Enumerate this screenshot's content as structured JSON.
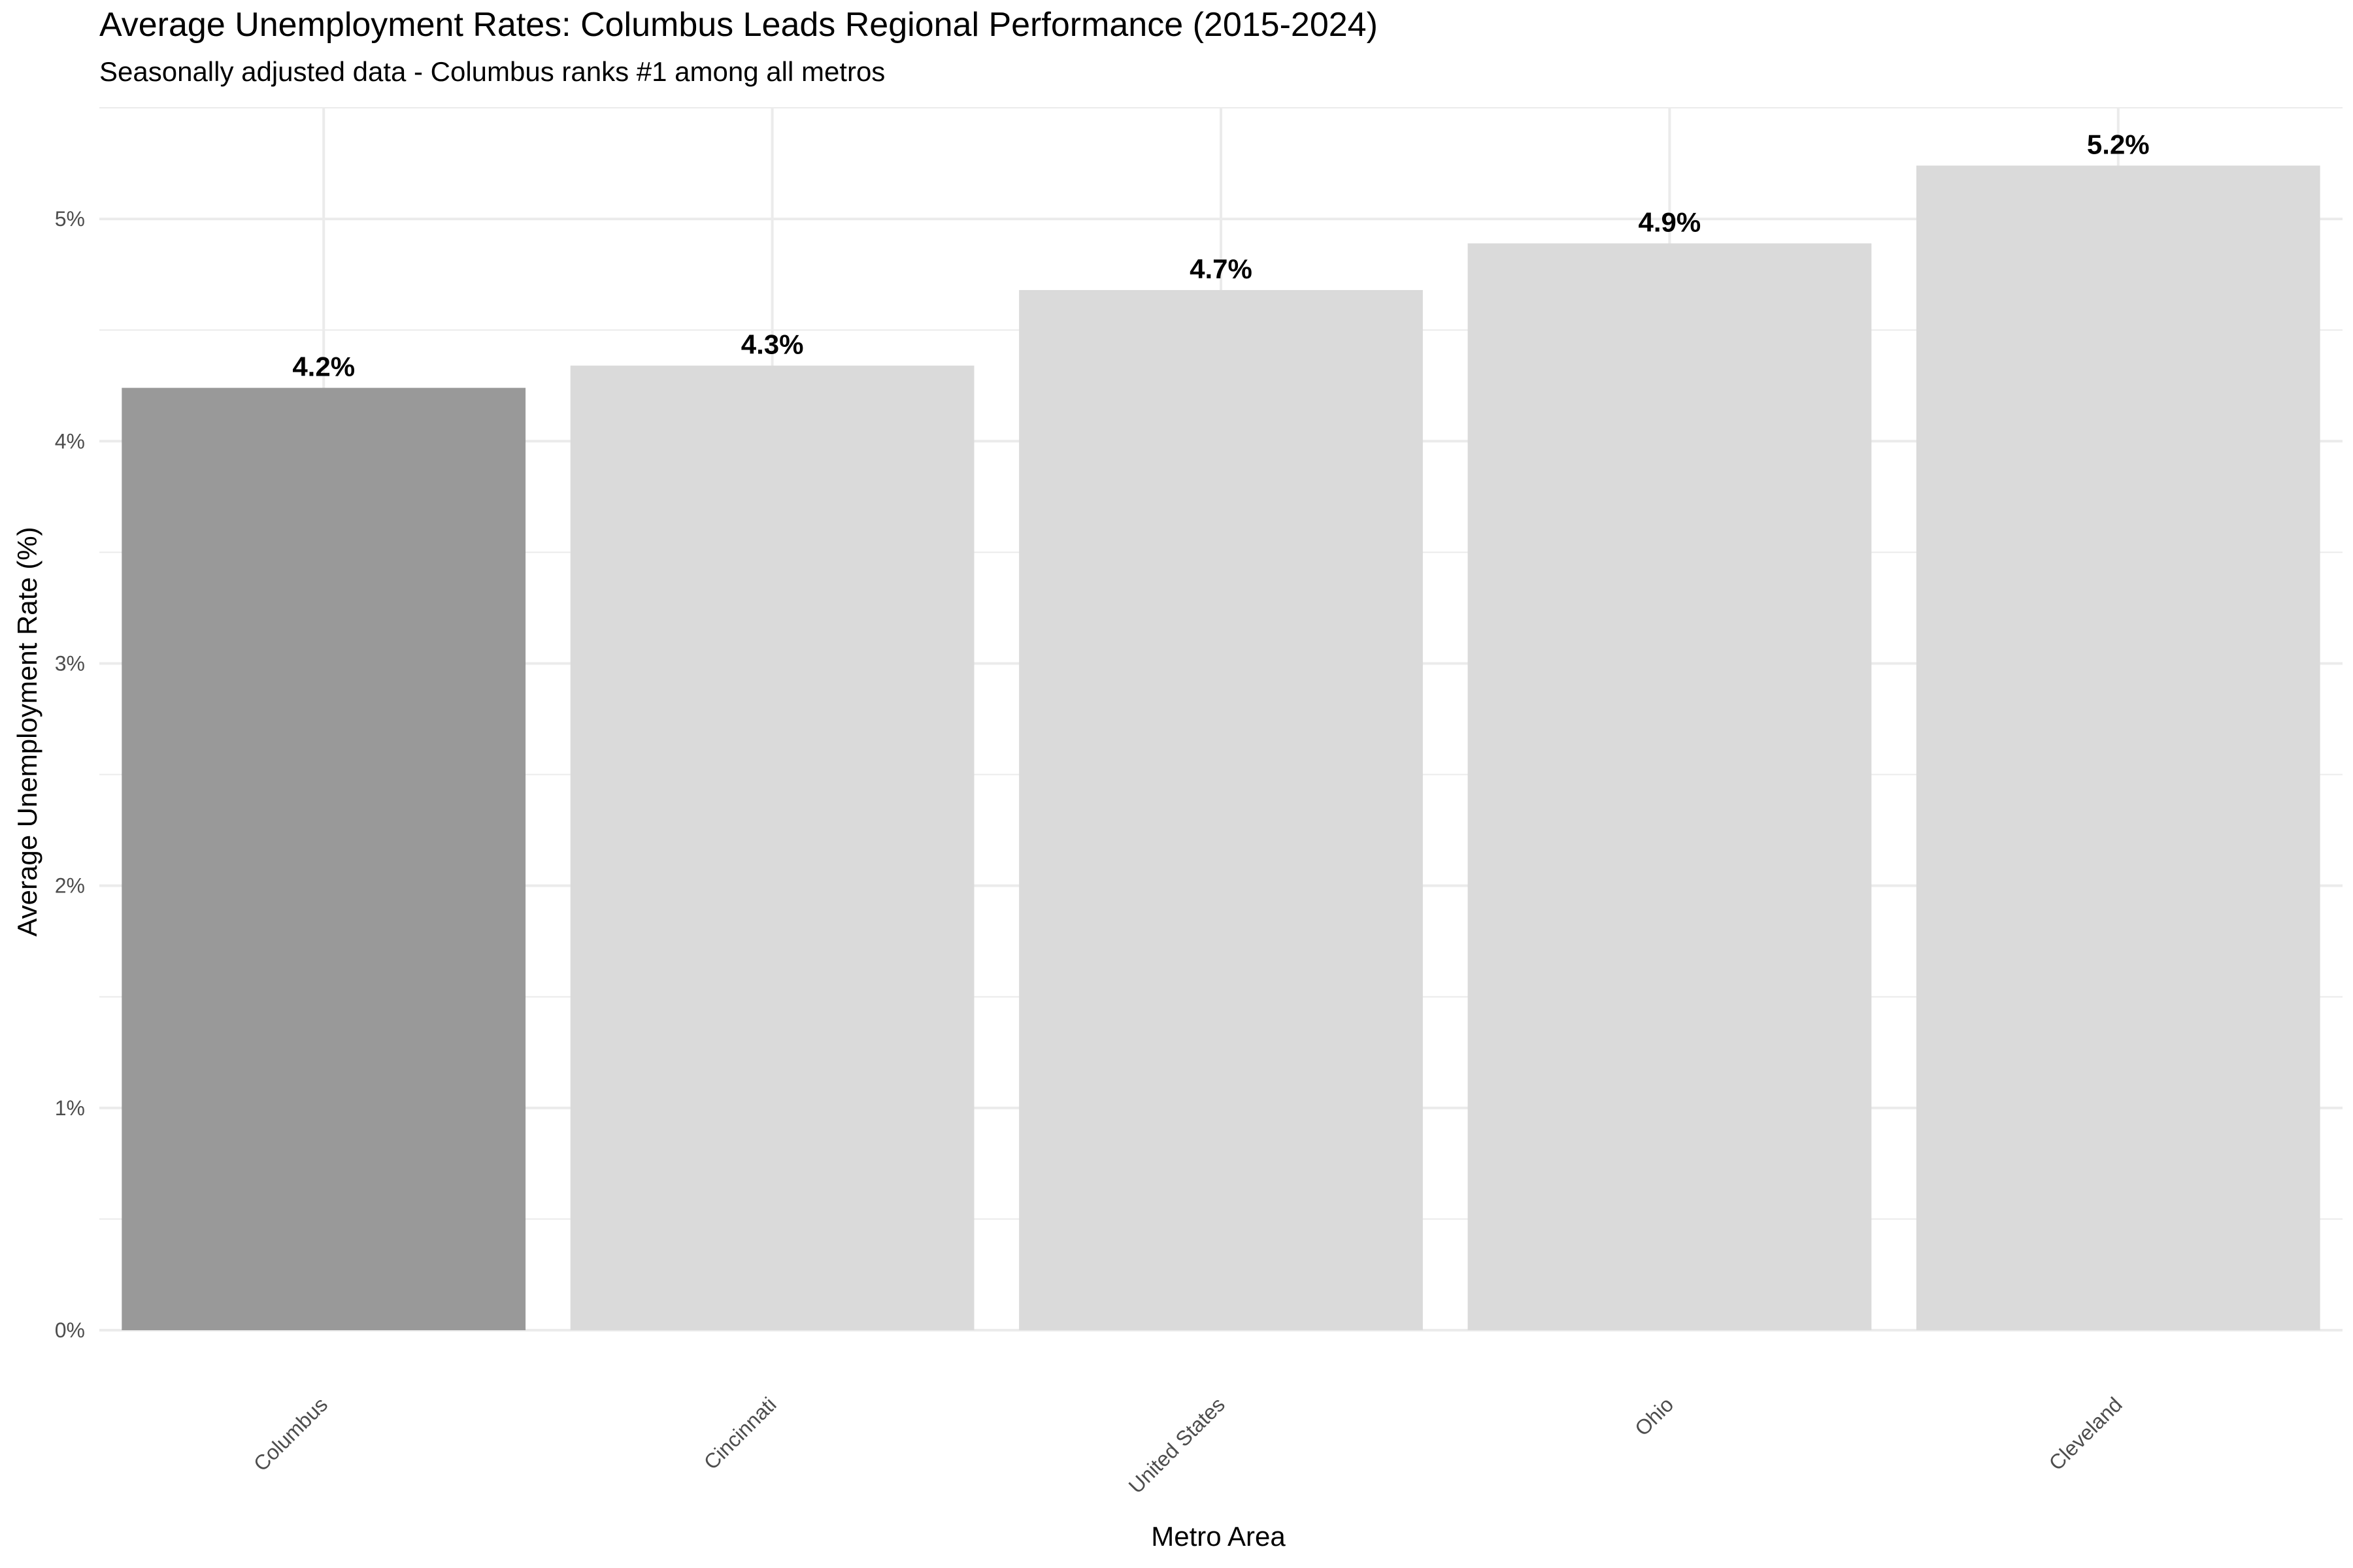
{
  "chart_data": {
    "type": "bar",
    "title": "Average Unemployment Rates: Columbus Leads Regional Performance (2015-2024)",
    "subtitle": "Seasonally adjusted data - Columbus ranks #1 among all metros",
    "xlabel": "Metro Area",
    "ylabel": "Average Unemployment Rate (%)",
    "categories": [
      "Columbus",
      "Cincinnati",
      "United States",
      "Ohio",
      "Cleveland"
    ],
    "values": [
      4.24,
      4.34,
      4.68,
      4.89,
      5.24
    ],
    "value_labels": [
      "4.2%",
      "4.3%",
      "4.7%",
      "4.9%",
      "5.2%"
    ],
    "highlight": "Columbus",
    "ylim": [
      0,
      5.5
    ],
    "yticks": [
      0,
      1,
      2,
      3,
      4,
      5
    ],
    "ytick_labels": [
      "0%",
      "1%",
      "2%",
      "3%",
      "4%",
      "5%"
    ],
    "grid": true,
    "legend": "none",
    "colors": {
      "highlight": "#999999",
      "default": "#dadada",
      "grid": "#ebebeb"
    }
  }
}
